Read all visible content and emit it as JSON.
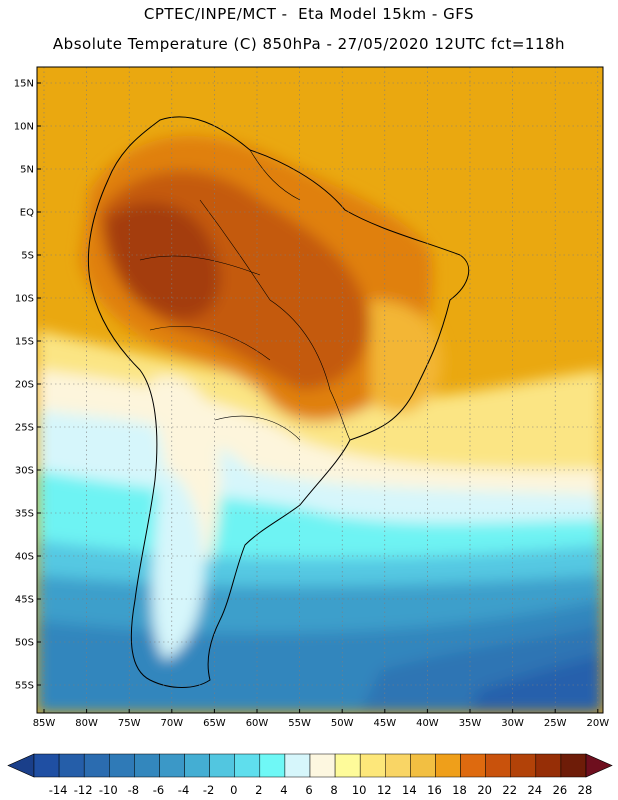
{
  "header": {
    "line1": "CPTEC/INPE/MCT -  Eta Model 15km - GFS",
    "line2": "Absolute Temperature (C) 850hPa - 27/05/2020 12UTC fct=118h"
  },
  "axes": {
    "lat_labels": [
      "15N",
      "10N",
      "5N",
      "EQ",
      "5S",
      "10S",
      "15S",
      "20S",
      "25S",
      "30S",
      "35S",
      "40S",
      "45S",
      "50S",
      "55S"
    ],
    "lon_labels": [
      "85W",
      "80W",
      "75W",
      "70W",
      "65W",
      "60W",
      "55W",
      "50W",
      "45W",
      "40W",
      "35W",
      "30W",
      "25W",
      "20W"
    ]
  },
  "colorbar": {
    "ticks": [
      "-14",
      "-12",
      "-10",
      "-8",
      "-6",
      "-4",
      "-2",
      "0",
      "2",
      "4",
      "6",
      "8",
      "10",
      "12",
      "14",
      "16",
      "18",
      "20",
      "22",
      "24",
      "26",
      "28"
    ],
    "colors": [
      "#1f4fa3",
      "#255ea9",
      "#2b6cb0",
      "#2f7ab7",
      "#3387bd",
      "#3b98c7",
      "#44aed3",
      "#52c6e0",
      "#5fdeed",
      "#6ff8f6",
      "#d6f6fb",
      "#fdf7e0",
      "#fefb9a",
      "#fde77a",
      "#f9d565",
      "#f2bf42",
      "#ef9f1a",
      "#de6a0f",
      "#c9520c",
      "#b24208",
      "#962e06",
      "#6e1c08"
    ],
    "under_color": "#1a3f8a",
    "over_color": "#6e0f1e"
  },
  "map": {
    "ocean_color": "#eaa810",
    "colors": {
      "hot1": "#e0800c",
      "hot2": "#c45a0a",
      "hot3": "#a43c08",
      "warm": "#f3b636",
      "pale": "#fbe584",
      "cream": "#fdf5dc",
      "ice": "#d6f6fb",
      "cyan": "#6ef3f3",
      "lightblue": "#55c8e2",
      "blue1": "#3d9fcb",
      "blue2": "#3286bd",
      "blue3": "#2e74b4",
      "blue4": "#2661ac"
    }
  }
}
